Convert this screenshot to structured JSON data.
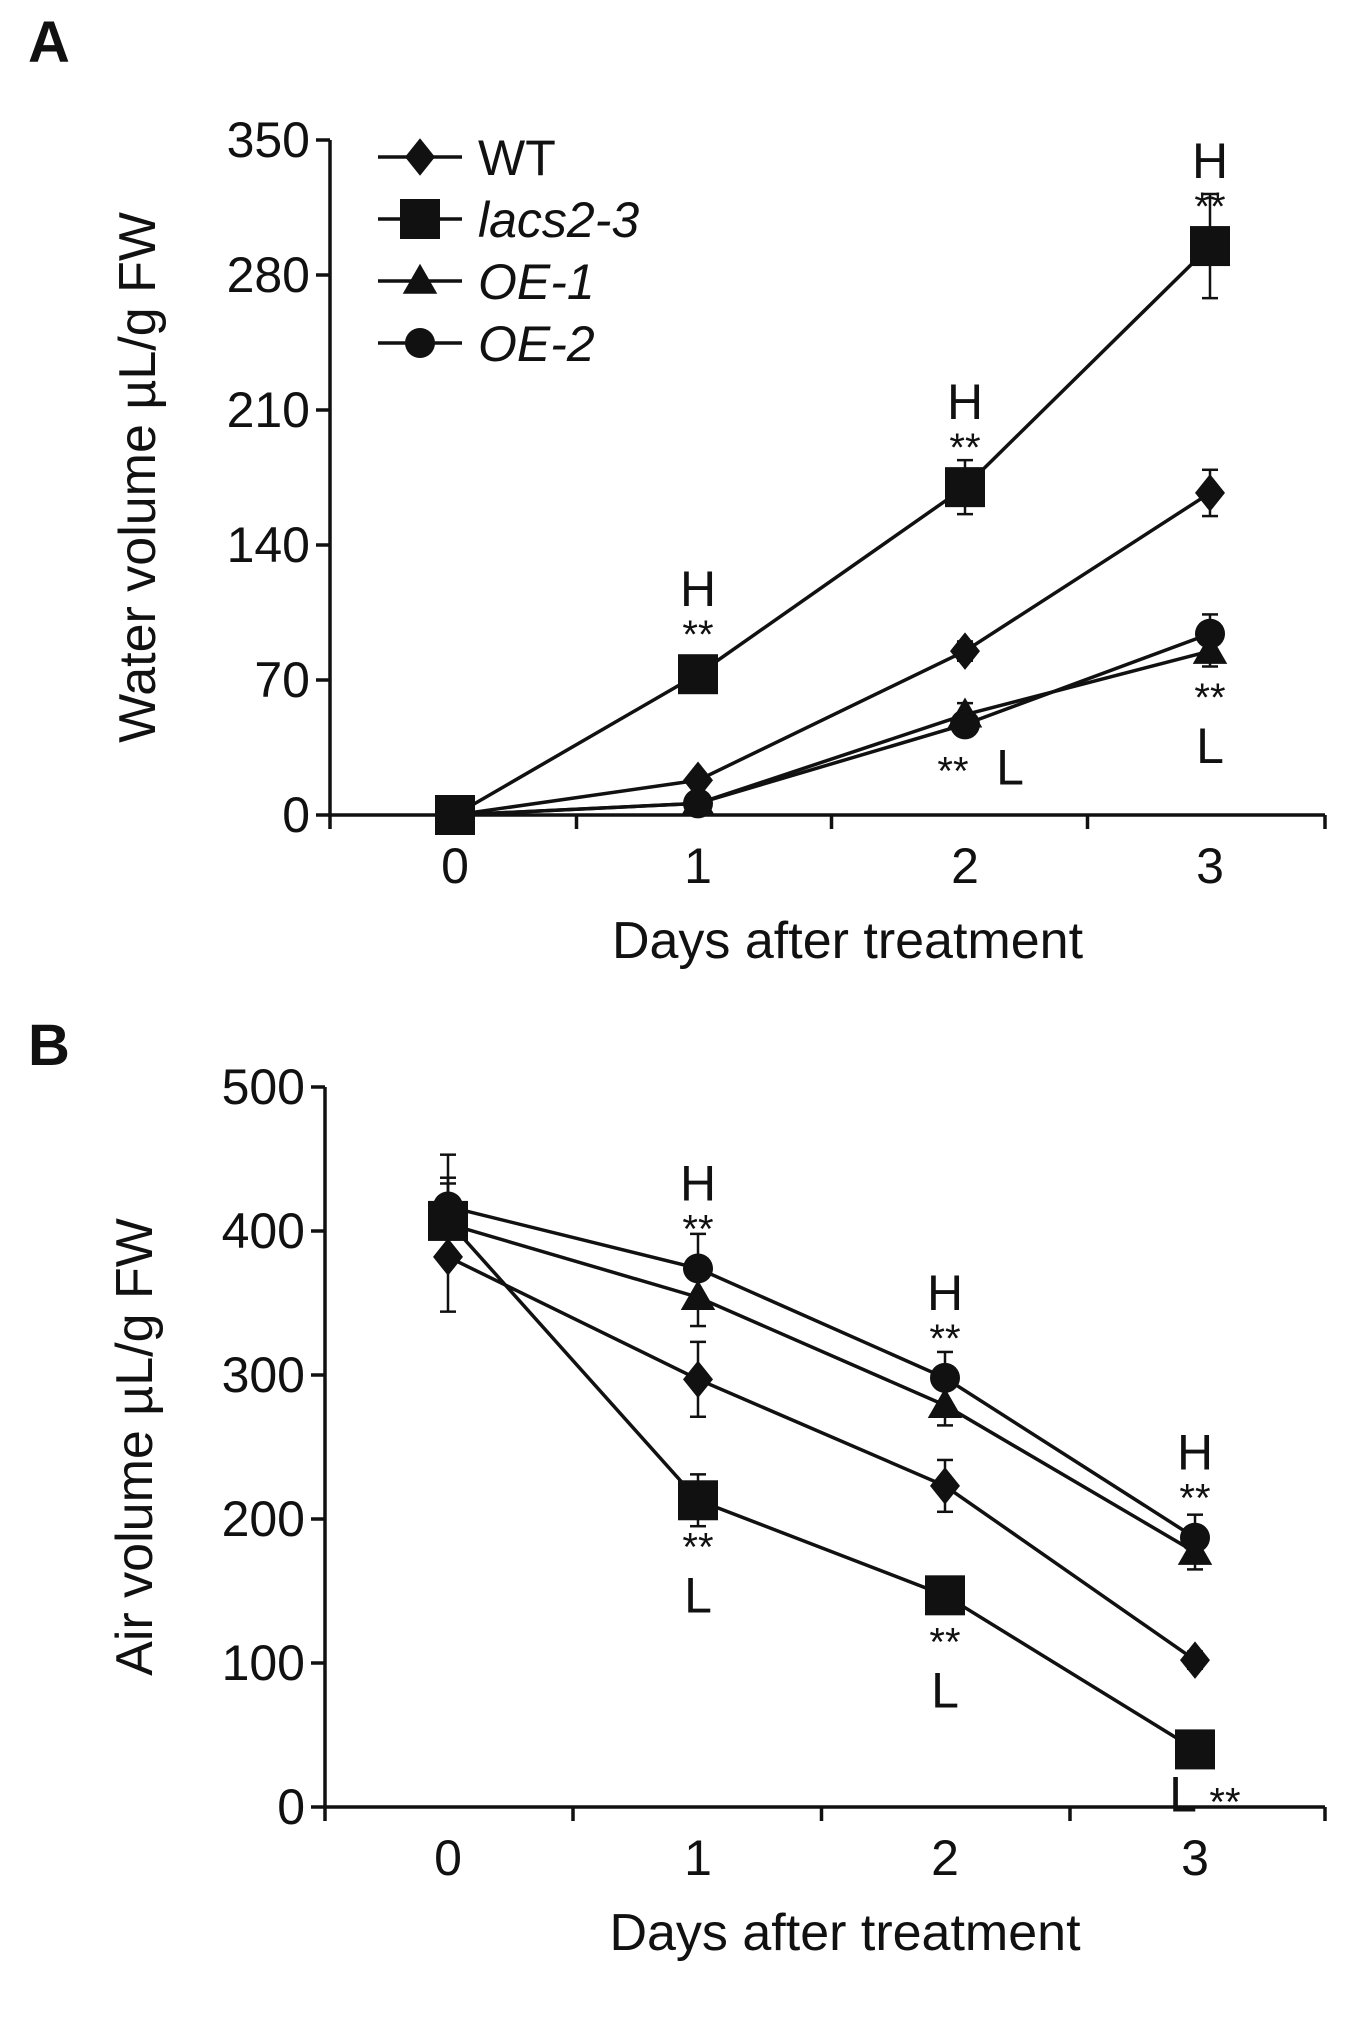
{
  "chart_data": [
    {
      "panel": "A",
      "type": "line",
      "xlabel": "Days after treatment",
      "ylabel": "Water volume µL/g FW",
      "x": [
        0,
        1,
        2,
        3
      ],
      "x_ticks": [
        "0",
        "1",
        "2",
        "3"
      ],
      "y_ticks": [
        "0",
        "70",
        "140",
        "210",
        "280",
        "350"
      ],
      "ylim": [
        0,
        350
      ],
      "legend_position": "top-left",
      "series": [
        {
          "name": "WT",
          "marker": "diamond",
          "italic": false,
          "values": [
            0,
            18,
            85,
            167
          ],
          "errors": [
            2,
            3,
            5,
            12
          ]
        },
        {
          "name": "lacs2-3",
          "marker": "square",
          "italic": true,
          "values": [
            0,
            73,
            170,
            295
          ],
          "errors": [
            2,
            4,
            14,
            27
          ]
        },
        {
          "name": "OE-1",
          "marker": "triangle",
          "italic": true,
          "values": [
            0,
            6,
            52,
            85
          ],
          "errors": [
            2,
            2,
            6,
            8
          ]
        },
        {
          "name": "OE-2",
          "marker": "circle",
          "italic": true,
          "values": [
            0,
            6,
            47,
            94
          ],
          "errors": [
            2,
            2,
            6,
            10
          ]
        }
      ],
      "annotations": [
        {
          "day": 1,
          "value": 73,
          "letter": "H",
          "stars": "**",
          "placement": "above"
        },
        {
          "day": 2,
          "value": 170,
          "letter": "H",
          "stars": "**",
          "placement": "above"
        },
        {
          "day": 3,
          "value": 295,
          "letter": "H",
          "stars": "**",
          "placement": "above"
        },
        {
          "day": 2,
          "value": 47,
          "letter": "L",
          "stars": "**",
          "placement": "right"
        },
        {
          "day": 3,
          "value": 85,
          "letter": "L",
          "stars": "**",
          "placement": "below"
        }
      ]
    },
    {
      "panel": "B",
      "type": "line",
      "xlabel": "Days after treatment",
      "ylabel": "Air volume µL/g FW",
      "x": [
        0,
        1,
        2,
        3
      ],
      "x_ticks": [
        "0",
        "1",
        "2",
        "3"
      ],
      "y_ticks": [
        "0",
        "100",
        "200",
        "300",
        "400",
        "500"
      ],
      "ylim": [
        0,
        500
      ],
      "series": [
        {
          "name": "WT",
          "marker": "diamond",
          "values": [
            382,
            297,
            223,
            102
          ],
          "errors": [
            38,
            26,
            18,
            6
          ]
        },
        {
          "name": "lacs2-3",
          "marker": "square",
          "values": [
            407,
            213,
            147,
            40
          ],
          "errors": [
            30,
            18,
            10,
            8
          ]
        },
        {
          "name": "OE-1",
          "marker": "triangle",
          "values": [
            405,
            354,
            279,
            177
          ],
          "errors": [
            28,
            20,
            14,
            12
          ]
        },
        {
          "name": "OE-2",
          "marker": "circle",
          "values": [
            417,
            374,
            298,
            187
          ],
          "errors": [
            36,
            24,
            18,
            16
          ]
        }
      ],
      "annotations": [
        {
          "day": 1,
          "value": 374,
          "letter": "H",
          "stars": "**",
          "placement": "above"
        },
        {
          "day": 2,
          "value": 298,
          "letter": "H",
          "stars": "**",
          "placement": "above"
        },
        {
          "day": 3,
          "value": 187,
          "letter": "H",
          "stars": "**",
          "placement": "above"
        },
        {
          "day": 1,
          "value": 213,
          "letter": "L",
          "stars": "**",
          "placement": "below"
        },
        {
          "day": 2,
          "value": 147,
          "letter": "L",
          "stars": "**",
          "placement": "below"
        },
        {
          "day": 3,
          "value": 40,
          "letter": "L",
          "stars": "**",
          "placement": "below-side"
        }
      ]
    }
  ]
}
